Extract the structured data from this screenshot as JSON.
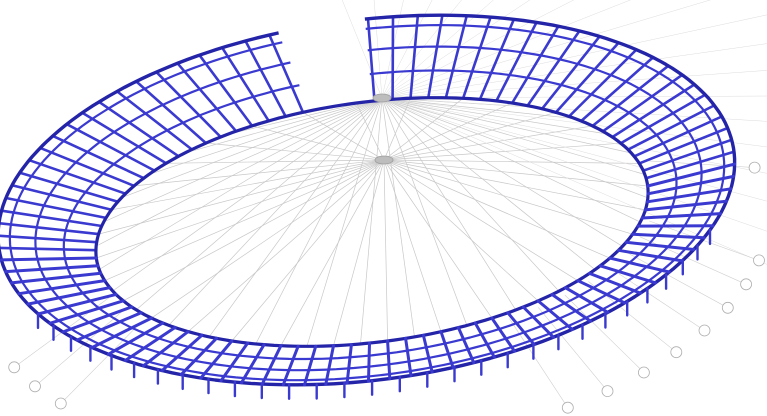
{
  "diagram": {
    "kind": "stadium-roof-structural-wireframe",
    "colors": {
      "background": "#ffffff",
      "structure": "#3a3ad0",
      "structure_dark": "#2424a8",
      "cables": "#c8c8c8",
      "hub": "#bdbdbd",
      "bubble": "#b0b0b0"
    },
    "hubs": [
      "upper-tension-hub",
      "lower-tension-hub"
    ],
    "radial_cable_count": 64,
    "grid_bubble_count": 28,
    "grid_bubble_labels": []
  }
}
